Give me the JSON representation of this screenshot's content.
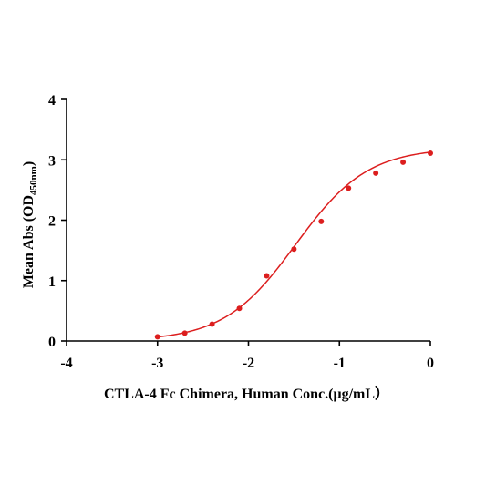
{
  "chart_data": {
    "type": "scatter",
    "title": "",
    "xlabel": "CTLA-4 Fc Chimera, Human  Conc.(μg/mL）",
    "ylabel": {
      "prefix": "Mean Abs (OD",
      "subscript": "450nm",
      "suffix": ")"
    },
    "xlim": [
      -4,
      0
    ],
    "ylim": [
      0,
      4
    ],
    "x_ticks": [
      -4,
      -3,
      -2,
      -1,
      0
    ],
    "y_ticks": [
      0,
      1,
      2,
      3,
      4
    ],
    "x_tick_labels": [
      "-4",
      "-3",
      "-2",
      "-1",
      "0"
    ],
    "y_tick_labels": [
      "0",
      "1",
      "2",
      "3",
      "4"
    ],
    "grid": false,
    "series": [
      {
        "points": [
          {
            "x": -3.0,
            "y": 0.07
          },
          {
            "x": -2.7,
            "y": 0.13
          },
          {
            "x": -2.4,
            "y": 0.28
          },
          {
            "x": -2.1,
            "y": 0.54
          },
          {
            "x": -1.8,
            "y": 1.08
          },
          {
            "x": -1.5,
            "y": 1.52
          },
          {
            "x": -1.2,
            "y": 1.98
          },
          {
            "x": -0.9,
            "y": 2.53
          },
          {
            "x": -0.6,
            "y": 2.78
          },
          {
            "x": -0.3,
            "y": 2.96
          },
          {
            "x": 0.0,
            "y": 3.11
          }
        ],
        "fit_curve": {
          "model": "4PL",
          "bottom": 0.0,
          "top": 3.2,
          "log_ec50": -1.48,
          "hill_slope": 1.1,
          "x_range": [
            -3.0,
            0.0
          ]
        },
        "color": "#dc1e1e"
      }
    ]
  }
}
